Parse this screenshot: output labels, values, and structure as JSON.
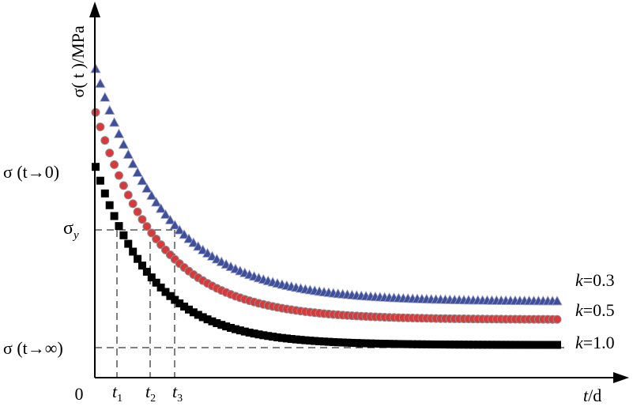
{
  "chart_data": {
    "type": "scatter",
    "title": "",
    "ylabel": "σ( t )/MPa",
    "xlabel": {
      "var": "t",
      "unit": "/d"
    },
    "origin_label": "0",
    "y_ticks": [
      {
        "key": "s0",
        "text": "σ (t→0)"
      },
      {
        "key": "sy",
        "base": "σ",
        "sub": "y"
      },
      {
        "key": "sinf",
        "text": "σ (t→∞)"
      }
    ],
    "x_ticks": [
      {
        "key": "t1",
        "base": "t",
        "sub": "1"
      },
      {
        "key": "t2",
        "base": "t",
        "sub": "2"
      },
      {
        "key": "t3",
        "base": "t",
        "sub": "3"
      }
    ],
    "series": [
      {
        "name": "k=0.3",
        "k": 0.3,
        "marker": "triangle",
        "color": "#3f4f9a",
        "start": 0.85,
        "end": 0.21,
        "decay": 6.5
      },
      {
        "name": "k=0.5",
        "k": 0.5,
        "marker": "circle",
        "color": "#d9393b",
        "start": 0.73,
        "end": 0.16,
        "decay": 7.2
      },
      {
        "name": "k=1.0",
        "k": 1.0,
        "marker": "square",
        "color": "#000000",
        "start": 0.58,
        "end": 0.09,
        "decay": 8.0
      }
    ],
    "x_range": [
      0,
      1
    ],
    "y_range": [
      0,
      1
    ],
    "point_count": 100,
    "grid": false,
    "legend": "right"
  }
}
